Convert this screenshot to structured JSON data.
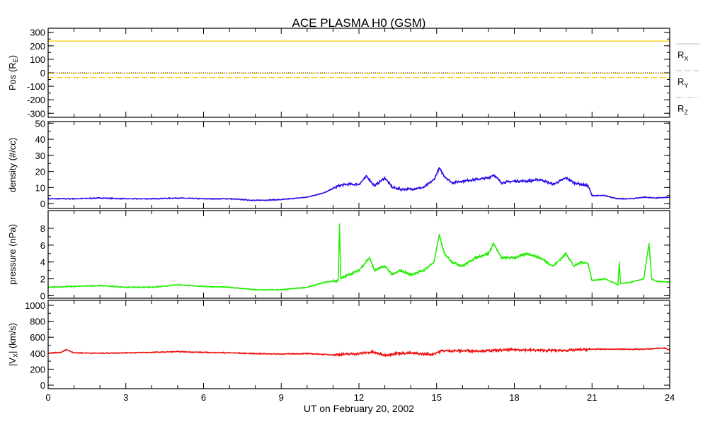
{
  "chart_data": {
    "type": "line",
    "title": "ACE PLASMA H0 (GSM)",
    "xlabel": "UT on February 20, 2002",
    "xlim": [
      0,
      24
    ],
    "xticks": [
      0,
      3,
      6,
      9,
      12,
      15,
      18,
      21,
      24
    ],
    "xtick_labels": [
      "0",
      "3",
      "6",
      "9",
      "12",
      "15",
      "18",
      "21",
      "24"
    ],
    "panels": [
      {
        "id": "position",
        "ylabel": "Pos (R",
        "ylabel_sub": "E",
        "ylabel_end": ")",
        "ylim": [
          -330,
          330
        ],
        "yticks": [
          300,
          200,
          100,
          0,
          -100,
          -200,
          -300
        ],
        "grid": false,
        "zero_line": true,
        "series": [
          {
            "name": "R",
            "sub": "X",
            "color": "#ffcc00",
            "style": "solid",
            "x": [
              0,
              24
            ],
            "y": [
              235,
              235
            ]
          },
          {
            "name": "R",
            "sub": "Y",
            "color": "#ffcc00",
            "style": "dashed",
            "x": [
              0,
              24
            ],
            "y": [
              -35,
              -35
            ]
          },
          {
            "name": "R",
            "sub": "Z",
            "color": "#ffcc00",
            "style": "dashdot",
            "x": [
              0,
              24
            ],
            "y": [
              -5,
              -5
            ]
          }
        ],
        "legend_placement": "right"
      },
      {
        "id": "density",
        "ylabel": "density (#/cc)",
        "ylim": [
          -3,
          51
        ],
        "yticks": [
          0,
          10,
          20,
          30,
          40,
          50
        ],
        "color": "#2a10e8",
        "x": [
          0,
          1,
          2,
          3,
          4,
          5,
          6,
          7,
          8,
          9,
          10,
          10.7,
          11.2,
          11.5,
          12,
          12.3,
          12.6,
          13,
          13.3,
          13.6,
          14,
          14.5,
          14.9,
          15.1,
          15.3,
          15.6,
          16,
          16.5,
          17,
          17.2,
          17.5,
          18,
          18.5,
          19,
          19.5,
          20,
          20.3,
          20.6,
          20.85,
          21,
          21.5,
          22,
          22.5,
          23,
          23.5,
          24
        ],
        "y": [
          3,
          3,
          3.5,
          3,
          3,
          3.5,
          3,
          3,
          2,
          2.5,
          4,
          7,
          11,
          12,
          12,
          17,
          11,
          16,
          10,
          9,
          9,
          10,
          15,
          22,
          17,
          13,
          14,
          15,
          16,
          18,
          13,
          14,
          14,
          15,
          12,
          16,
          13,
          12,
          11,
          5,
          5,
          3,
          3,
          4,
          3.5,
          4
        ]
      },
      {
        "id": "pressure",
        "ylabel": "pressure (nPa)",
        "ylim": [
          -0.3,
          10.1
        ],
        "yticks": [
          0,
          2,
          4,
          6,
          8
        ],
        "color": "#22ee00",
        "x": [
          0,
          1,
          2,
          3,
          4,
          5,
          6,
          7,
          8,
          9,
          10,
          10.7,
          11.2,
          11.25,
          11.3,
          11.6,
          12,
          12.4,
          12.6,
          13,
          13.3,
          13.6,
          14,
          14.5,
          14.9,
          15.1,
          15.3,
          15.6,
          16,
          16.5,
          17,
          17.2,
          17.5,
          18,
          18.5,
          19,
          19.5,
          20,
          20.3,
          20.6,
          20.85,
          21,
          21.5,
          22,
          22.05,
          22.1,
          22.5,
          23,
          23.2,
          23.3,
          23.5,
          24
        ],
        "y": [
          1,
          1.1,
          1.2,
          1,
          1,
          1.3,
          1.1,
          1,
          0.7,
          0.7,
          1,
          1.6,
          1.8,
          8.5,
          2,
          2.5,
          3,
          4.5,
          3,
          3.5,
          2.5,
          3,
          2.5,
          3,
          4,
          7.2,
          5,
          4,
          3.5,
          4.5,
          5,
          6.2,
          4.5,
          4.5,
          5,
          4.5,
          3.5,
          5,
          3.5,
          4,
          3.8,
          1.8,
          2,
          1.3,
          4,
          1.4,
          1.6,
          2,
          6.2,
          2,
          1.7,
          1.6
        ]
      },
      {
        "id": "vx",
        "ylabel": "|V",
        "ylabel_sub": "X",
        "ylabel_end": "| (km/s)",
        "ylim": [
          -44,
          1062
        ],
        "yticks": [
          0,
          200,
          400,
          600,
          800,
          1000
        ],
        "color": "#ee1111",
        "x": [
          0,
          0.5,
          0.7,
          1,
          2,
          3,
          4,
          5,
          6,
          7,
          8,
          9,
          10,
          11,
          12,
          12.5,
          13,
          13.5,
          14,
          14.8,
          15.2,
          16,
          17,
          18,
          19,
          20,
          21,
          22,
          23,
          23.8,
          24
        ],
        "y": [
          400,
          410,
          445,
          405,
          400,
          405,
          410,
          420,
          410,
          405,
          395,
          390,
          395,
          380,
          395,
          415,
          375,
          400,
          400,
          385,
          430,
          430,
          430,
          445,
          435,
          435,
          450,
          450,
          450,
          465,
          440
        ]
      }
    ]
  }
}
